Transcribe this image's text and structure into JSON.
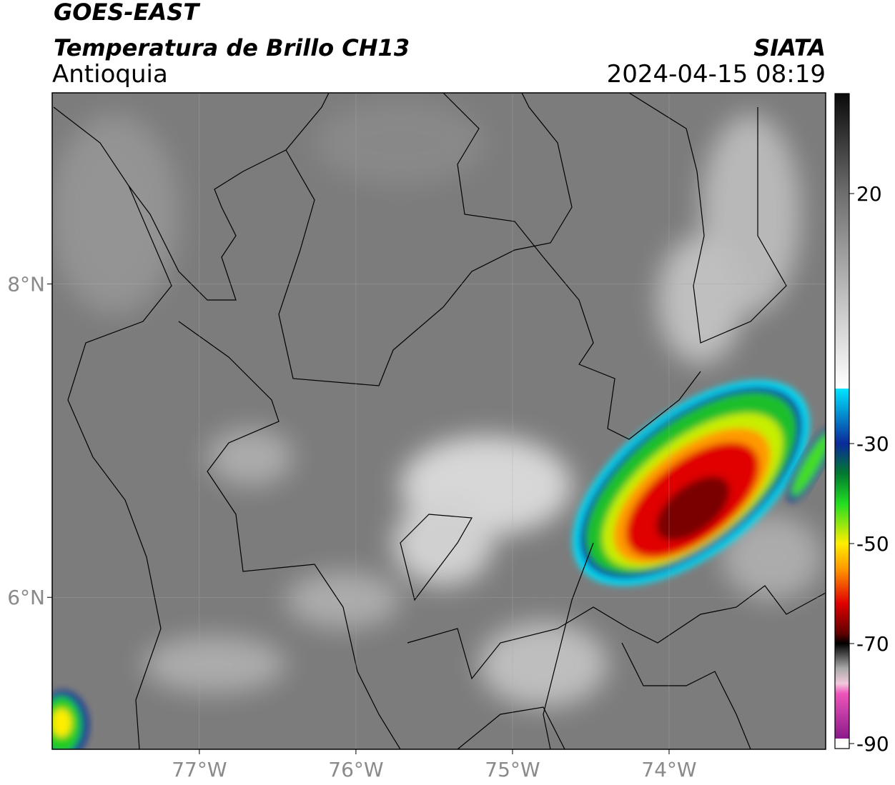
{
  "header": {
    "title": "GOES-EAST",
    "subtitle": "Temperatura de Brillo CH13",
    "region": "Antioquia",
    "source": "SIATA",
    "datetime": "2024-04-15 08:19"
  },
  "map": {
    "xlim": [
      -77.94,
      -73.0
    ],
    "ylim": [
      5.03,
      9.22
    ],
    "xticks": [
      {
        "value": -77,
        "label": "77°W"
      },
      {
        "value": -76,
        "label": "76°W"
      },
      {
        "value": -75,
        "label": "75°W"
      },
      {
        "value": -74,
        "label": "74°W"
      }
    ],
    "yticks": [
      {
        "value": 6,
        "label": "6°N"
      },
      {
        "value": 8,
        "label": "8°N"
      }
    ],
    "grid": true
  },
  "colorbar": {
    "lim": [
      -91,
      40
    ],
    "ticks": [
      20,
      -30,
      -50,
      -70,
      -90
    ],
    "stops": [
      {
        "value": 40,
        "color": "#0a0a0a"
      },
      {
        "value": 20,
        "color": "#6e6e6e"
      },
      {
        "value": 0,
        "color": "#bdbdbd"
      },
      {
        "value": -19,
        "color": "#ffffff"
      },
      {
        "value": -19,
        "color": "#00e5ff"
      },
      {
        "value": -30,
        "color": "#0a2a9a"
      },
      {
        "value": -36,
        "color": "#007a30"
      },
      {
        "value": -42,
        "color": "#22dd22"
      },
      {
        "value": -50,
        "color": "#ffee00"
      },
      {
        "value": -55,
        "color": "#ff9900"
      },
      {
        "value": -62,
        "color": "#e00000"
      },
      {
        "value": -68,
        "color": "#600000"
      },
      {
        "value": -70,
        "color": "#000000"
      },
      {
        "value": -75,
        "color": "#aaaaaa"
      },
      {
        "value": -78,
        "color": "#f2c8dc"
      },
      {
        "value": -80,
        "color": "#ee55bb"
      },
      {
        "value": -89,
        "color": "#8a1a8a"
      },
      {
        "value": -89,
        "color": "#ffffff"
      },
      {
        "value": -91,
        "color": "#ffffff"
      }
    ]
  }
}
